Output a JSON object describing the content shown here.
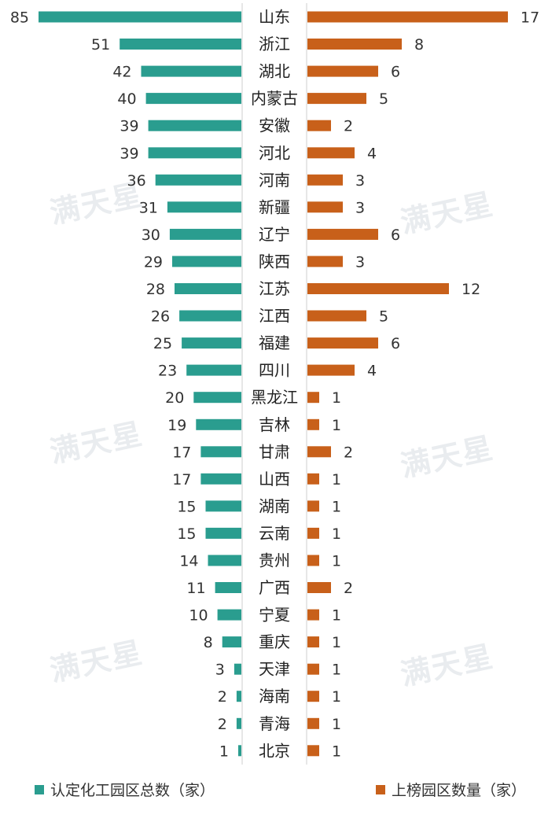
{
  "chart_data": {
    "type": "bar",
    "orientation": "horizontal-butterfly",
    "categories": [
      "山东",
      "浙江",
      "湖北",
      "内蒙古",
      "安徽",
      "河北",
      "河南",
      "新疆",
      "辽宁",
      "陕西",
      "江苏",
      "江西",
      "福建",
      "四川",
      "黑龙江",
      "吉林",
      "甘肃",
      "山西",
      "湖南",
      "云南",
      "贵州",
      "广西",
      "宁夏",
      "重庆",
      "天津",
      "海南",
      "青海",
      "北京"
    ],
    "series": [
      {
        "name": "认定化工园区总数（家）",
        "color": "#2a9d8f",
        "values": [
          85,
          51,
          42,
          40,
          39,
          39,
          36,
          31,
          30,
          29,
          28,
          26,
          25,
          23,
          20,
          19,
          17,
          17,
          15,
          15,
          14,
          11,
          10,
          8,
          3,
          2,
          2,
          1
        ]
      },
      {
        "name": "上榜园区数量（家）",
        "color": "#c8601a",
        "values": [
          17,
          8,
          6,
          5,
          2,
          4,
          3,
          3,
          6,
          3,
          12,
          5,
          6,
          4,
          1,
          1,
          2,
          1,
          1,
          1,
          1,
          2,
          1,
          1,
          1,
          1,
          1,
          1
        ]
      }
    ],
    "legend": "bottom",
    "grid": false
  },
  "watermark": "满天星"
}
